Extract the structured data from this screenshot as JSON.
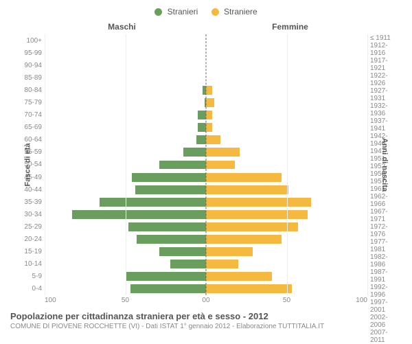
{
  "chart": {
    "type": "population-pyramid",
    "legend": {
      "male": {
        "label": "Stranieri",
        "color": "#6a9e5e"
      },
      "female": {
        "label": "Straniere",
        "color": "#f5b93f"
      }
    },
    "header_left": "Maschi",
    "header_right": "Femmine",
    "y_title_left": "Fasce di età",
    "y_title_right": "Anni di nascita",
    "x_max": 100,
    "x_ticks": [
      0,
      50,
      100
    ],
    "age_labels": [
      "100+",
      "95-99",
      "90-94",
      "85-89",
      "80-84",
      "75-79",
      "70-74",
      "65-69",
      "60-64",
      "55-59",
      "50-54",
      "45-49",
      "40-44",
      "35-39",
      "30-34",
      "25-29",
      "20-24",
      "15-19",
      "10-14",
      "5-9",
      "0-4"
    ],
    "birth_labels": [
      "≤ 1911",
      "1912-1916",
      "1917-1921",
      "1922-1926",
      "1927-1931",
      "1932-1936",
      "1937-1941",
      "1942-1946",
      "1947-1951",
      "1952-1956",
      "1957-1961",
      "1962-1966",
      "1967-1971",
      "1972-1976",
      "1977-1981",
      "1982-1986",
      "1987-1991",
      "1992-1996",
      "1997-2001",
      "2002-2006",
      "2007-2011"
    ],
    "male_values": [
      0,
      0,
      0,
      0,
      2,
      1,
      5,
      5,
      6,
      14,
      29,
      46,
      44,
      66,
      83,
      48,
      43,
      29,
      22,
      50,
      47
    ],
    "female_values": [
      0,
      0,
      0,
      0,
      4,
      5,
      4,
      4,
      9,
      21,
      18,
      47,
      51,
      65,
      63,
      57,
      47,
      29,
      20,
      41,
      53
    ],
    "background_color": "#ffffff",
    "grid_color": "#eeeeee",
    "text_color": "#888888",
    "caption": "Popolazione per cittadinanza straniera per età e sesso - 2012",
    "subcaption": "COMUNE DI PIOVENE ROCCHETTE (VI) - Dati ISTAT 1° gennaio 2012 - Elaborazione TUTTITALIA.IT"
  }
}
